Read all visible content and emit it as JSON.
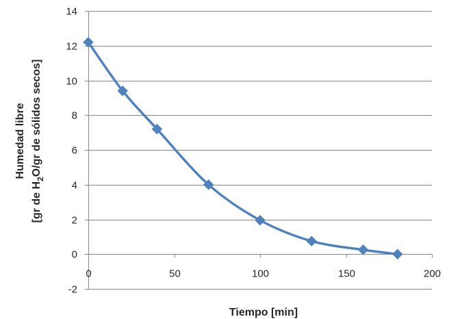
{
  "chart_data": {
    "type": "line",
    "title": "",
    "xlabel": "Tiempo [min]",
    "ylabel": {
      "line1": "Humedad libre",
      "line2_prefix": "[gr de H",
      "line2_subscript": "2",
      "line2_suffix": "O/gr de sólidos secos]"
    },
    "xlim": [
      0,
      200
    ],
    "ylim": [
      -2,
      14
    ],
    "xticks": [
      0,
      50,
      100,
      150,
      200
    ],
    "yticks": [
      -2,
      0,
      2,
      4,
      6,
      8,
      10,
      12,
      14
    ],
    "grid": "horizontal",
    "legend": "none",
    "series": [
      {
        "color": "#4f81bd",
        "marker": "diamond",
        "smooth": true,
        "x": [
          0,
          20,
          40,
          70,
          100,
          130,
          160,
          180
        ],
        "y": [
          12.2,
          9.4,
          7.2,
          4.0,
          1.95,
          0.75,
          0.25,
          0.0
        ]
      }
    ]
  }
}
